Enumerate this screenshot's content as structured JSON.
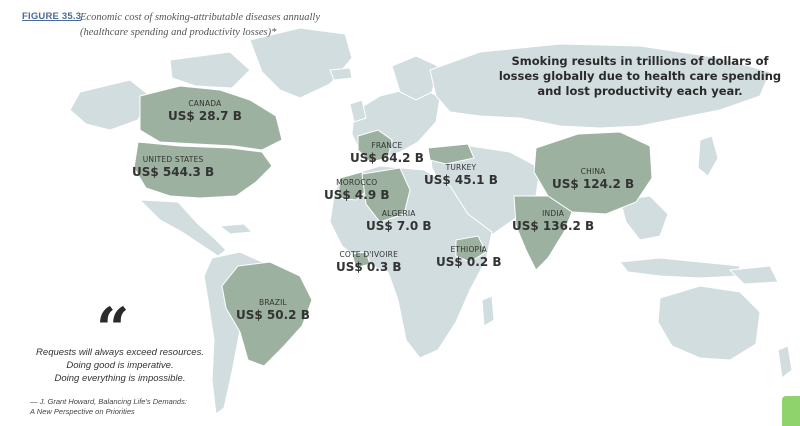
{
  "figure": {
    "label": "FIGURE 35.3",
    "title_line1": "Economic cost of smoking-attributable diseases annually",
    "title_line2": "(healthcare spending and productivity losses)*"
  },
  "headline": {
    "line1": "Smoking results in trillions of dollars of",
    "line2": "losses globally due to health care spending",
    "line3": "and lost productivity each year."
  },
  "countries": {
    "canada": {
      "name": "CANADA",
      "value": "US$ 28.7 B"
    },
    "united_states": {
      "name": "UNITED STATES",
      "value": "US$ 544.3 B"
    },
    "france": {
      "name": "FRANCE",
      "value": "US$ 64.2 B"
    },
    "morocco": {
      "name": "MOROCCO",
      "value": "US$ 4.9 B"
    },
    "algeria": {
      "name": "ALGERIA",
      "value": "US$ 7.0 B"
    },
    "turkey": {
      "name": "TURKEY",
      "value": "US$ 45.1 B"
    },
    "china": {
      "name": "CHINA",
      "value": "US$ 124.2 B"
    },
    "india": {
      "name": "INDIA",
      "value": "US$ 136.2 B"
    },
    "cote_divoire": {
      "name": "COTE D'IVOIRE",
      "value": "US$ 0.3 B"
    },
    "ethiopia": {
      "name": "ETHIOPIA",
      "value": "US$ 0.2 B"
    },
    "brazil": {
      "name": "BRAZIL",
      "value": "US$ 50.2 B"
    }
  },
  "quote": {
    "mark": "“",
    "line1": "Requests will always exceed resources.",
    "line2": "Doing good is imperative.",
    "line3": "Doing everything is impossible.",
    "attribution_line1": "— J. Grant Howard, Balancing Life's Demands:",
    "attribution_line2": "A New Perspective on Priorities"
  },
  "colors": {
    "land": "#d2dde0",
    "highlight": "#9cb19f",
    "border": "#ffffff"
  }
}
